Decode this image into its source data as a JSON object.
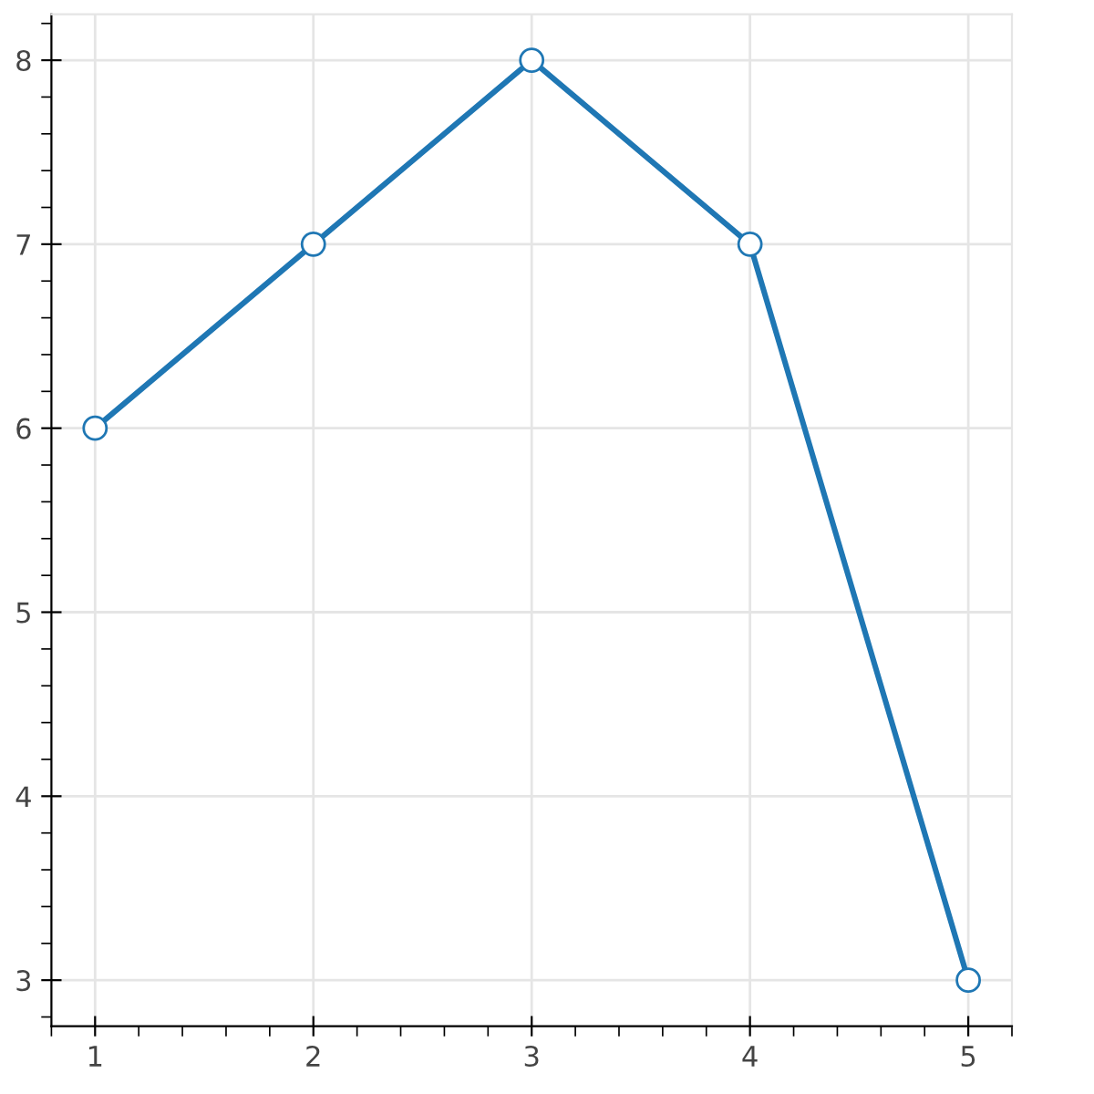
{
  "chart_data": {
    "type": "line",
    "x": [
      1,
      2,
      3,
      4,
      5
    ],
    "series": [
      {
        "color": "#1f77b4",
        "values": [
          6,
          7,
          8,
          7,
          3
        ]
      }
    ],
    "xlim": [
      0.8,
      5.2
    ],
    "ylim": [
      2.75,
      8.25
    ],
    "xticks": [
      1,
      2,
      3,
      4,
      5
    ],
    "yticks": [
      3,
      4,
      5,
      6,
      7,
      8
    ],
    "grid": true,
    "marker": "circle",
    "line_style": "solid"
  }
}
